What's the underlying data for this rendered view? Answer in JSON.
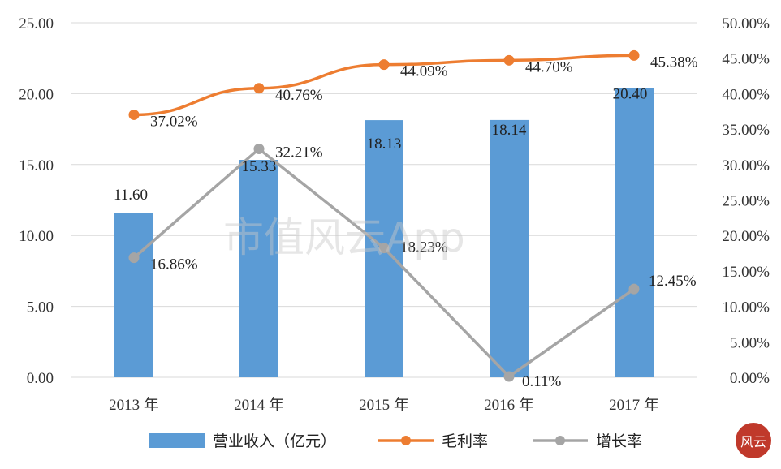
{
  "watermark": "市值风云App",
  "seal_text": "风云",
  "colors": {
    "bar": "#5b9bd5",
    "margin_line": "#ed7d31",
    "growth_line": "#a5a5a5",
    "grid": "#d9d9d9",
    "seal": "#c0392b"
  },
  "chart_data": {
    "type": "bar",
    "categories": [
      "2013 年",
      "2014 年",
      "2015 年",
      "2016 年",
      "2017 年"
    ],
    "y_left": {
      "ylim": [
        0,
        25
      ],
      "ticks": [
        "0.00",
        "5.00",
        "10.00",
        "15.00",
        "20.00",
        "25.00"
      ]
    },
    "y_right": {
      "ylim": [
        0,
        0.5
      ],
      "ticks": [
        "0.00%",
        "5.00%",
        "10.00%",
        "15.00%",
        "20.00%",
        "25.00%",
        "30.00%",
        "35.00%",
        "40.00%",
        "45.00%",
        "50.00%"
      ]
    },
    "grid": true,
    "legend_position": "bottom",
    "series": [
      {
        "name": "营业收入（亿元）",
        "kind": "bar",
        "axis": "left",
        "values": [
          11.6,
          15.33,
          18.13,
          18.14,
          20.4
        ],
        "labels": [
          "11.60",
          "15.33",
          "18.13",
          "18.14",
          "20.40"
        ]
      },
      {
        "name": "毛利率",
        "kind": "line",
        "axis": "right",
        "values": [
          0.3702,
          0.4076,
          0.4409,
          0.447,
          0.4538
        ],
        "labels": [
          "37.02%",
          "40.76%",
          "44.09%",
          "44.70%",
          "45.38%"
        ]
      },
      {
        "name": "增长率",
        "kind": "line",
        "axis": "right",
        "values": [
          0.1686,
          0.3221,
          0.1823,
          0.0011,
          0.1245
        ],
        "labels": [
          "16.86%",
          "32.21%",
          "18.23%",
          "0.11%",
          "12.45%"
        ]
      }
    ]
  }
}
